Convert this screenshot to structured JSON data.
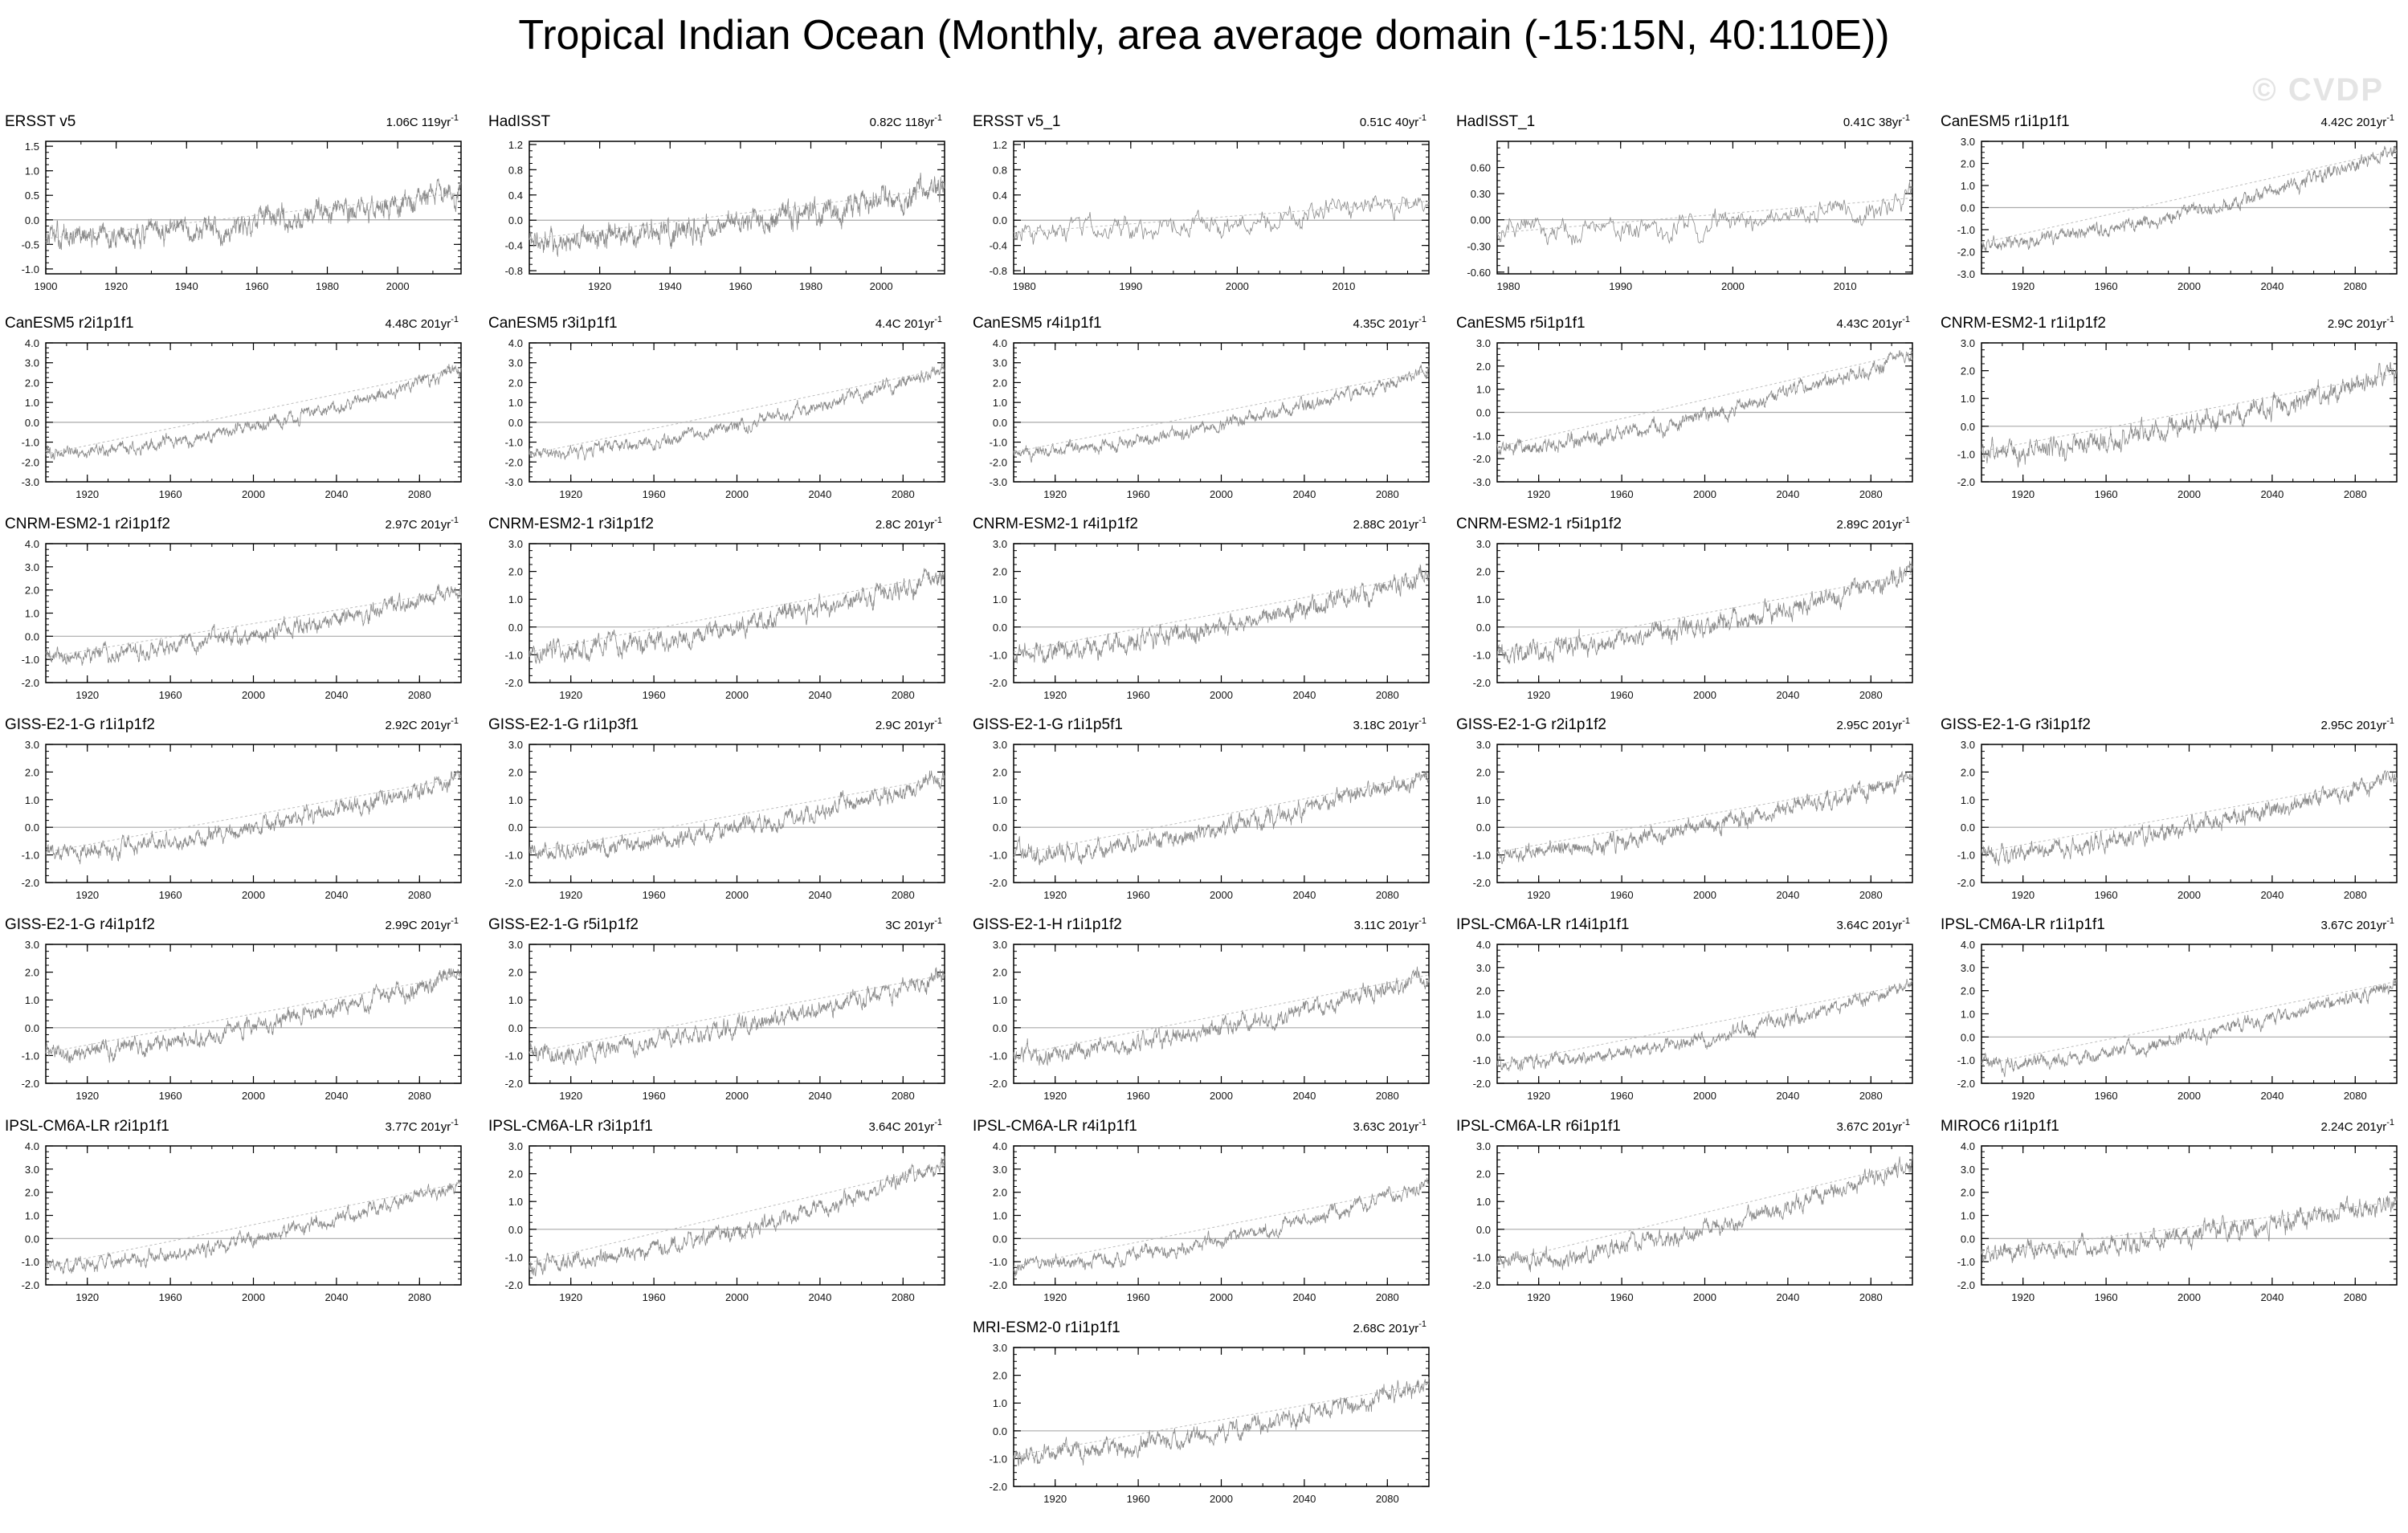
{
  "title": "Tropical Indian Ocean (Monthly, area average domain (-15:15N, 40:110E))",
  "watermark": "© CVDP",
  "chart_data": [
    {
      "type": "line",
      "name": "ERSST v5",
      "trend": "1.06C 119yr",
      "trend_exp": "-1",
      "xlim": [
        1900,
        2018
      ],
      "ylim": [
        -1.1,
        1.6
      ],
      "yticks": [
        -1.0,
        -0.5,
        0.0,
        0.5,
        1.0,
        1.5
      ],
      "ytick_labels": [
        "-1.0",
        "-0.5",
        "0.0",
        "0.5",
        "1.0",
        "1.5"
      ],
      "xticks": [
        1900,
        1920,
        1940,
        1960,
        1980,
        2000
      ],
      "anom_start": -0.38,
      "anom_end": 0.55,
      "noise": 0.22
    },
    {
      "type": "line",
      "name": "HadISST",
      "trend": "0.82C 118yr",
      "trend_exp": "-1",
      "xlim": [
        1900,
        2018
      ],
      "ylim": [
        -0.85,
        1.25
      ],
      "yticks": [
        -0.8,
        -0.4,
        0.0,
        0.4,
        0.8,
        1.2
      ],
      "ytick_labels": [
        "-0.8",
        "-0.4",
        "0.0",
        "0.4",
        "0.8",
        "1.2"
      ],
      "xticks": [
        1920,
        1940,
        1960,
        1980,
        2000
      ],
      "anom_start": -0.3,
      "anom_end": 0.5,
      "noise": 0.18
    },
    {
      "type": "line",
      "name": "ERSST v5_1",
      "trend": "0.51C 40yr",
      "trend_exp": "-1",
      "xlim": [
        1979,
        2018
      ],
      "ylim": [
        -0.85,
        1.25
      ],
      "yticks": [
        -0.8,
        -0.4,
        0.0,
        0.4,
        0.8,
        1.2
      ],
      "ytick_labels": [
        "-0.8",
        "-0.4",
        "0.0",
        "0.4",
        "0.8",
        "1.2"
      ],
      "xticks": [
        1980,
        1990,
        2000,
        2010
      ],
      "anom_start": -0.2,
      "anom_end": 0.3,
      "noise": 0.18
    },
    {
      "type": "line",
      "name": "HadISST_1",
      "trend": "0.41C 38yr",
      "trend_exp": "-1",
      "xlim": [
        1979,
        2016
      ],
      "ylim": [
        -0.62,
        0.9
      ],
      "yticks": [
        -0.6,
        -0.3,
        0.0,
        0.3,
        0.6
      ],
      "ytick_labels": [
        "-0.60",
        "-0.30",
        "0.00",
        "0.30",
        "0.60"
      ],
      "xticks": [
        1980,
        1990,
        2000,
        2010
      ],
      "anom_start": -0.15,
      "anom_end": 0.25,
      "noise": 0.14
    },
    {
      "type": "line",
      "name": "CanESM5 r1i1p1f1",
      "trend": "4.42C 201yr",
      "trend_exp": "-1",
      "xlim": [
        1900,
        2100
      ],
      "ylim": [
        -3,
        3
      ],
      "yticks": [
        -3,
        -2,
        -1,
        0,
        1,
        2,
        3
      ],
      "ytick_labels": [
        "-3.0",
        "-2.0",
        "-1.0",
        "0.0",
        "1.0",
        "2.0",
        "3.0"
      ],
      "xticks": [
        1920,
        1960,
        2000,
        2040,
        2080
      ],
      "anom_start": -1.6,
      "anom_end": 2.6,
      "noise": 0.3
    },
    {
      "type": "line",
      "name": "CanESM5 r2i1p1f1",
      "trend": "4.48C 201yr",
      "trend_exp": "-1",
      "xlim": [
        1900,
        2100
      ],
      "ylim": [
        -3,
        4
      ],
      "yticks": [
        -3,
        -2,
        -1,
        0,
        1,
        2,
        3,
        4
      ],
      "ytick_labels": [
        "-3.0",
        "-2.0",
        "-1.0",
        "0.0",
        "1.0",
        "2.0",
        "3.0",
        "4.0"
      ],
      "xticks": [
        1920,
        1960,
        2000,
        2040,
        2080
      ],
      "anom_start": -1.6,
      "anom_end": 2.7,
      "noise": 0.3
    },
    {
      "type": "line",
      "name": "CanESM5 r3i1p1f1",
      "trend": "4.4C 201yr",
      "trend_exp": "-1",
      "xlim": [
        1900,
        2100
      ],
      "ylim": [
        -3,
        4
      ],
      "yticks": [
        -3,
        -2,
        -1,
        0,
        1,
        2,
        3,
        4
      ],
      "ytick_labels": [
        "-3.0",
        "-2.0",
        "-1.0",
        "0.0",
        "1.0",
        "2.0",
        "3.0",
        "4.0"
      ],
      "xticks": [
        1920,
        1960,
        2000,
        2040,
        2080
      ],
      "anom_start": -1.6,
      "anom_end": 2.7,
      "noise": 0.3
    },
    {
      "type": "line",
      "name": "CanESM5 r4i1p1f1",
      "trend": "4.35C 201yr",
      "trend_exp": "-1",
      "xlim": [
        1900,
        2100
      ],
      "ylim": [
        -3,
        4
      ],
      "yticks": [
        -3,
        -2,
        -1,
        0,
        1,
        2,
        3,
        4
      ],
      "ytick_labels": [
        "-3.0",
        "-2.0",
        "-1.0",
        "0.0",
        "1.0",
        "2.0",
        "3.0",
        "4.0"
      ],
      "xticks": [
        1920,
        1960,
        2000,
        2040,
        2080
      ],
      "anom_start": -1.5,
      "anom_end": 2.6,
      "noise": 0.3
    },
    {
      "type": "line",
      "name": "CanESM5 r5i1p1f1",
      "trend": "4.43C 201yr",
      "trend_exp": "-1",
      "xlim": [
        1900,
        2100
      ],
      "ylim": [
        -3,
        3
      ],
      "yticks": [
        -3,
        -2,
        -1,
        0,
        1,
        2,
        3
      ],
      "ytick_labels": [
        "-3.0",
        "-2.0",
        "-1.0",
        "0.0",
        "1.0",
        "2.0",
        "3.0"
      ],
      "xticks": [
        1920,
        1960,
        2000,
        2040,
        2080
      ],
      "anom_start": -1.5,
      "anom_end": 2.6,
      "noise": 0.3
    },
    {
      "type": "line",
      "name": "CNRM-ESM2-1 r1i1p1f2",
      "trend": "2.9C 201yr",
      "trend_exp": "-1",
      "xlim": [
        1900,
        2100
      ],
      "ylim": [
        -2,
        3
      ],
      "yticks": [
        -2,
        -1,
        0,
        1,
        2,
        3
      ],
      "ytick_labels": [
        "-2.0",
        "-1.0",
        "0.0",
        "1.0",
        "2.0",
        "3.0"
      ],
      "xticks": [
        1920,
        1960,
        2000,
        2040,
        2080
      ],
      "anom_start": -0.9,
      "anom_end": 1.9,
      "noise": 0.35
    },
    {
      "type": "line",
      "name": "CNRM-ESM2-1 r2i1p1f2",
      "trend": "2.97C 201yr",
      "trend_exp": "-1",
      "xlim": [
        1900,
        2100
      ],
      "ylim": [
        -2,
        4
      ],
      "yticks": [
        -2,
        -1,
        0,
        1,
        2,
        3,
        4
      ],
      "ytick_labels": [
        "-2.0",
        "-1.0",
        "0.0",
        "1.0",
        "2.0",
        "3.0",
        "4.0"
      ],
      "xticks": [
        1920,
        1960,
        2000,
        2040,
        2080
      ],
      "anom_start": -0.9,
      "anom_end": 2.0,
      "noise": 0.35
    },
    {
      "type": "line",
      "name": "CNRM-ESM2-1 r3i1p1f2",
      "trend": "2.8C 201yr",
      "trend_exp": "-1",
      "xlim": [
        1900,
        2100
      ],
      "ylim": [
        -2,
        3
      ],
      "yticks": [
        -2,
        -1,
        0,
        1,
        2,
        3
      ],
      "ytick_labels": [
        "-2.0",
        "-1.0",
        "0.0",
        "1.0",
        "2.0",
        "3.0"
      ],
      "xticks": [
        1920,
        1960,
        2000,
        2040,
        2080
      ],
      "anom_start": -0.9,
      "anom_end": 1.9,
      "noise": 0.35
    },
    {
      "type": "line",
      "name": "CNRM-ESM2-1 r4i1p1f2",
      "trend": "2.88C 201yr",
      "trend_exp": "-1",
      "xlim": [
        1900,
        2100
      ],
      "ylim": [
        -2,
        3
      ],
      "yticks": [
        -2,
        -1,
        0,
        1,
        2,
        3
      ],
      "ytick_labels": [
        "-2.0",
        "-1.0",
        "0.0",
        "1.0",
        "2.0",
        "3.0"
      ],
      "xticks": [
        1920,
        1960,
        2000,
        2040,
        2080
      ],
      "anom_start": -0.9,
      "anom_end": 1.9,
      "noise": 0.35
    },
    {
      "type": "line",
      "name": "CNRM-ESM2-1 r5i1p1f2",
      "trend": "2.89C 201yr",
      "trend_exp": "-1",
      "xlim": [
        1900,
        2100
      ],
      "ylim": [
        -2,
        3
      ],
      "yticks": [
        -2,
        -1,
        0,
        1,
        2,
        3
      ],
      "ytick_labels": [
        "-2.0",
        "-1.0",
        "0.0",
        "1.0",
        "2.0",
        "3.0"
      ],
      "xticks": [
        1920,
        1960,
        2000,
        2040,
        2080
      ],
      "anom_start": -0.9,
      "anom_end": 1.9,
      "noise": 0.35
    },
    null,
    {
      "type": "line",
      "name": "GISS-E2-1-G r1i1p1f2",
      "trend": "2.92C 201yr",
      "trend_exp": "-1",
      "xlim": [
        1900,
        2100
      ],
      "ylim": [
        -2,
        3
      ],
      "yticks": [
        -2,
        -1,
        0,
        1,
        2,
        3
      ],
      "ytick_labels": [
        "-2.0",
        "-1.0",
        "0.0",
        "1.0",
        "2.0",
        "3.0"
      ],
      "xticks": [
        1920,
        1960,
        2000,
        2040,
        2080
      ],
      "anom_start": -0.9,
      "anom_end": 1.8,
      "noise": 0.3
    },
    {
      "type": "line",
      "name": "GISS-E2-1-G r1i1p3f1",
      "trend": "2.9C 201yr",
      "trend_exp": "-1",
      "xlim": [
        1900,
        2100
      ],
      "ylim": [
        -2,
        3
      ],
      "yticks": [
        -2,
        -1,
        0,
        1,
        2,
        3
      ],
      "ytick_labels": [
        "-2.0",
        "-1.0",
        "0.0",
        "1.0",
        "2.0",
        "3.0"
      ],
      "xticks": [
        1920,
        1960,
        2000,
        2040,
        2080
      ],
      "anom_start": -0.9,
      "anom_end": 1.8,
      "noise": 0.3
    },
    {
      "type": "line",
      "name": "GISS-E2-1-G r1i1p5f1",
      "trend": "3.18C 201yr",
      "trend_exp": "-1",
      "xlim": [
        1900,
        2100
      ],
      "ylim": [
        -2,
        3
      ],
      "yticks": [
        -2,
        -1,
        0,
        1,
        2,
        3
      ],
      "ytick_labels": [
        "-2.0",
        "-1.0",
        "0.0",
        "1.0",
        "2.0",
        "3.0"
      ],
      "xticks": [
        1920,
        1960,
        2000,
        2040,
        2080
      ],
      "anom_start": -1.0,
      "anom_end": 1.9,
      "noise": 0.3
    },
    {
      "type": "line",
      "name": "GISS-E2-1-G r2i1p1f2",
      "trend": "2.95C 201yr",
      "trend_exp": "-1",
      "xlim": [
        1900,
        2100
      ],
      "ylim": [
        -2,
        3
      ],
      "yticks": [
        -2,
        -1,
        0,
        1,
        2,
        3
      ],
      "ytick_labels": [
        "-2.0",
        "-1.0",
        "0.0",
        "1.0",
        "2.0",
        "3.0"
      ],
      "xticks": [
        1920,
        1960,
        2000,
        2040,
        2080
      ],
      "anom_start": -0.9,
      "anom_end": 1.8,
      "noise": 0.3
    },
    {
      "type": "line",
      "name": "GISS-E2-1-G r3i1p1f2",
      "trend": "2.95C 201yr",
      "trend_exp": "-1",
      "xlim": [
        1900,
        2100
      ],
      "ylim": [
        -2,
        3
      ],
      "yticks": [
        -2,
        -1,
        0,
        1,
        2,
        3
      ],
      "ytick_labels": [
        "-2.0",
        "-1.0",
        "0.0",
        "1.0",
        "2.0",
        "3.0"
      ],
      "xticks": [
        1920,
        1960,
        2000,
        2040,
        2080
      ],
      "anom_start": -0.9,
      "anom_end": 1.8,
      "noise": 0.3
    },
    {
      "type": "line",
      "name": "GISS-E2-1-G r4i1p1f2",
      "trend": "2.99C 201yr",
      "trend_exp": "-1",
      "xlim": [
        1900,
        2100
      ],
      "ylim": [
        -2,
        3
      ],
      "yticks": [
        -2,
        -1,
        0,
        1,
        2,
        3
      ],
      "ytick_labels": [
        "-2.0",
        "-1.0",
        "0.0",
        "1.0",
        "2.0",
        "3.0"
      ],
      "xticks": [
        1920,
        1960,
        2000,
        2040,
        2080
      ],
      "anom_start": -0.9,
      "anom_end": 1.9,
      "noise": 0.3
    },
    {
      "type": "line",
      "name": "GISS-E2-1-G r5i1p1f2",
      "trend": "3C 201yr",
      "trend_exp": "-1",
      "xlim": [
        1900,
        2100
      ],
      "ylim": [
        -2,
        3
      ],
      "yticks": [
        -2,
        -1,
        0,
        1,
        2,
        3
      ],
      "ytick_labels": [
        "-2.0",
        "-1.0",
        "0.0",
        "1.0",
        "2.0",
        "3.0"
      ],
      "xticks": [
        1920,
        1960,
        2000,
        2040,
        2080
      ],
      "anom_start": -0.9,
      "anom_end": 1.9,
      "noise": 0.3
    },
    {
      "type": "line",
      "name": "GISS-E2-1-H r1i1p1f2",
      "trend": "3.11C 201yr",
      "trend_exp": "-1",
      "xlim": [
        1900,
        2100
      ],
      "ylim": [
        -2,
        3
      ],
      "yticks": [
        -2,
        -1,
        0,
        1,
        2,
        3
      ],
      "ytick_labels": [
        "-2.0",
        "-1.0",
        "0.0",
        "1.0",
        "2.0",
        "3.0"
      ],
      "xticks": [
        1920,
        1960,
        2000,
        2040,
        2080
      ],
      "anom_start": -1.0,
      "anom_end": 1.9,
      "noise": 0.3
    },
    {
      "type": "line",
      "name": "IPSL-CM6A-LR r14i1p1f1",
      "trend": "3.64C 201yr",
      "trend_exp": "-1",
      "xlim": [
        1900,
        2100
      ],
      "ylim": [
        -2,
        4
      ],
      "yticks": [
        -2,
        -1,
        0,
        1,
        2,
        3,
        4
      ],
      "ytick_labels": [
        "-2.0",
        "-1.0",
        "0.0",
        "1.0",
        "2.0",
        "3.0",
        "4.0"
      ],
      "xticks": [
        1920,
        1960,
        2000,
        2040,
        2080
      ],
      "anom_start": -1.2,
      "anom_end": 2.3,
      "noise": 0.28
    },
    {
      "type": "line",
      "name": "IPSL-CM6A-LR r1i1p1f1",
      "trend": "3.67C 201yr",
      "trend_exp": "-1",
      "xlim": [
        1900,
        2100
      ],
      "ylim": [
        -2,
        4
      ],
      "yticks": [
        -2,
        -1,
        0,
        1,
        2,
        3,
        4
      ],
      "ytick_labels": [
        "-2.0",
        "-1.0",
        "0.0",
        "1.0",
        "2.0",
        "3.0",
        "4.0"
      ],
      "xticks": [
        1920,
        1960,
        2000,
        2040,
        2080
      ],
      "anom_start": -1.2,
      "anom_end": 2.4,
      "noise": 0.28
    },
    {
      "type": "line",
      "name": "IPSL-CM6A-LR r2i1p1f1",
      "trend": "3.77C 201yr",
      "trend_exp": "-1",
      "xlim": [
        1900,
        2100
      ],
      "ylim": [
        -2,
        4
      ],
      "yticks": [
        -2,
        -1,
        0,
        1,
        2,
        3,
        4
      ],
      "ytick_labels": [
        "-2.0",
        "-1.0",
        "0.0",
        "1.0",
        "2.0",
        "3.0",
        "4.0"
      ],
      "xticks": [
        1920,
        1960,
        2000,
        2040,
        2080
      ],
      "anom_start": -1.2,
      "anom_end": 2.4,
      "noise": 0.28
    },
    {
      "type": "line",
      "name": "IPSL-CM6A-LR r3i1p1f1",
      "trend": "3.64C 201yr",
      "trend_exp": "-1",
      "xlim": [
        1900,
        2100
      ],
      "ylim": [
        -2,
        3
      ],
      "yticks": [
        -2,
        -1,
        0,
        1,
        2,
        3
      ],
      "ytick_labels": [
        "-2.0",
        "-1.0",
        "0.0",
        "1.0",
        "2.0",
        "3.0"
      ],
      "xticks": [
        1920,
        1960,
        2000,
        2040,
        2080
      ],
      "anom_start": -1.2,
      "anom_end": 2.3,
      "noise": 0.28
    },
    {
      "type": "line",
      "name": "IPSL-CM6A-LR r4i1p1f1",
      "trend": "3.63C 201yr",
      "trend_exp": "-1",
      "xlim": [
        1900,
        2100
      ],
      "ylim": [
        -2,
        4
      ],
      "yticks": [
        -2,
        -1,
        0,
        1,
        2,
        3,
        4
      ],
      "ytick_labels": [
        "-2.0",
        "-1.0",
        "0.0",
        "1.0",
        "2.0",
        "3.0",
        "4.0"
      ],
      "xticks": [
        1920,
        1960,
        2000,
        2040,
        2080
      ],
      "anom_start": -1.2,
      "anom_end": 2.3,
      "noise": 0.28
    },
    {
      "type": "line",
      "name": "IPSL-CM6A-LR r6i1p1f1",
      "trend": "3.67C 201yr",
      "trend_exp": "-1",
      "xlim": [
        1900,
        2100
      ],
      "ylim": [
        -2,
        3
      ],
      "yticks": [
        -2,
        -1,
        0,
        1,
        2,
        3
      ],
      "ytick_labels": [
        "-2.0",
        "-1.0",
        "0.0",
        "1.0",
        "2.0",
        "3.0"
      ],
      "xticks": [
        1920,
        1960,
        2000,
        2040,
        2080
      ],
      "anom_start": -1.2,
      "anom_end": 2.4,
      "noise": 0.28
    },
    {
      "type": "line",
      "name": "MIROC6 r1i1p1f1",
      "trend": "2.24C 201yr",
      "trend_exp": "-1",
      "xlim": [
        1900,
        2100
      ],
      "ylim": [
        -2,
        4
      ],
      "yticks": [
        -2,
        -1,
        0,
        1,
        2,
        3,
        4
      ],
      "ytick_labels": [
        "-2.0",
        "-1.0",
        "0.0",
        "1.0",
        "2.0",
        "3.0",
        "4.0"
      ],
      "xticks": [
        1920,
        1960,
        2000,
        2040,
        2080
      ],
      "anom_start": -0.6,
      "anom_end": 1.6,
      "noise": 0.4
    },
    null,
    null,
    {
      "type": "line",
      "name": "MRI-ESM2-0 r1i1p1f1",
      "trend": "2.68C 201yr",
      "trend_exp": "-1",
      "xlim": [
        1900,
        2100
      ],
      "ylim": [
        -2,
        3
      ],
      "yticks": [
        -2,
        -1,
        0,
        1,
        2,
        3
      ],
      "ytick_labels": [
        "-2.0",
        "-1.0",
        "0.0",
        "1.0",
        "2.0",
        "3.0"
      ],
      "xticks": [
        1920,
        1960,
        2000,
        2040,
        2080
      ],
      "anom_start": -0.9,
      "anom_end": 1.7,
      "noise": 0.3
    }
  ]
}
